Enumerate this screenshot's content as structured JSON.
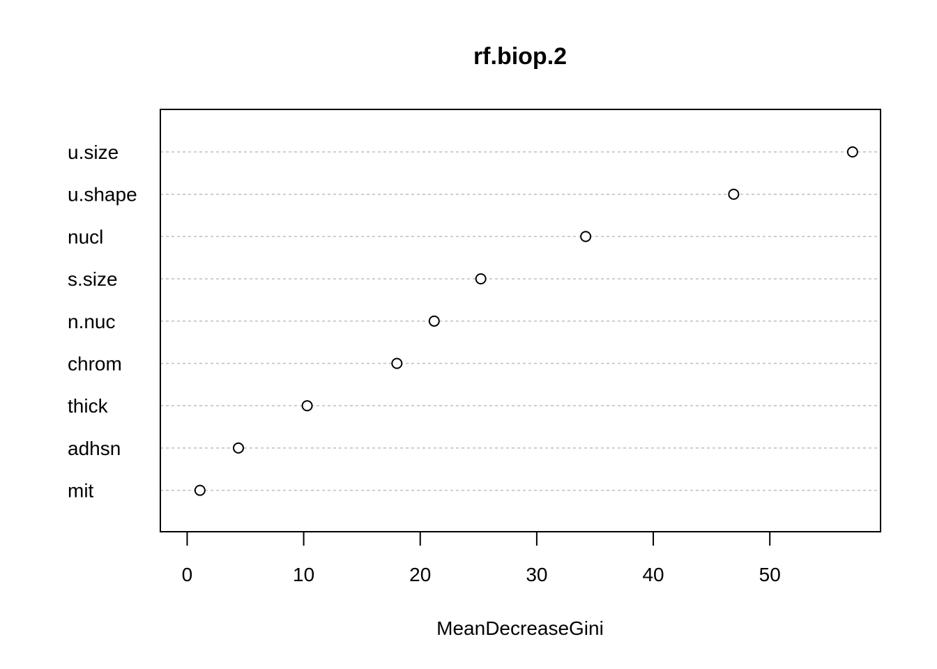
{
  "chart_data": {
    "type": "scatter",
    "title": "rf.biop.2",
    "xlabel": "MeanDecreaseGini",
    "ylabel": "",
    "categories": [
      "u.size",
      "u.shape",
      "nucl",
      "s.size",
      "n.nuc",
      "chrom",
      "thick",
      "adhsn",
      "mit"
    ],
    "values": [
      57.1,
      46.9,
      34.2,
      25.2,
      21.2,
      18.0,
      10.3,
      4.4,
      1.1
    ],
    "xticks": [
      0,
      10,
      20,
      30,
      40,
      50
    ],
    "xlim": [
      -2.3,
      59.5
    ],
    "grid": "dotted horizontal",
    "marker": "open-circle",
    "colors": {
      "line": "#000000",
      "grid": "#bebebe",
      "background": "#ffffff"
    }
  }
}
